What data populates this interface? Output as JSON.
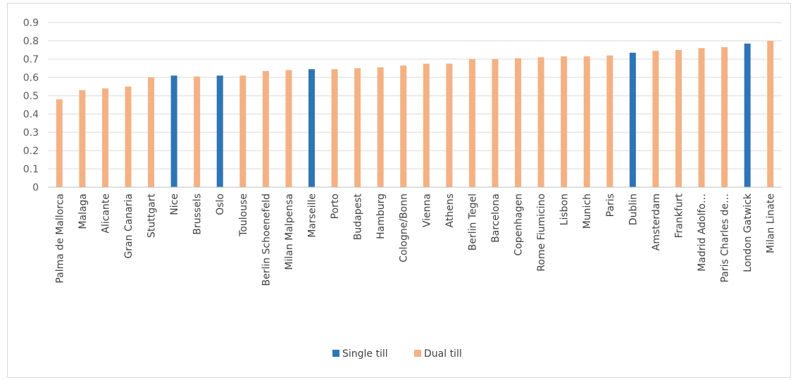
{
  "colors": {
    "single_till": "#2e75b6",
    "dual_till": "#f4b183",
    "grid": "#d9d9d9",
    "axis": "#bfbfbf"
  },
  "chart_data": {
    "type": "bar",
    "title": "",
    "xlabel": "",
    "ylabel": "",
    "ylim": [
      0,
      0.9
    ],
    "yticks": [
      "0",
      "0.1",
      "0.2",
      "0.3",
      "0.4",
      "0.5",
      "0.6",
      "0.7",
      "0.8",
      "0.9"
    ],
    "grid": true,
    "legend_position": "bottom",
    "categories": [
      "Palma de Mallorca",
      "Malaga",
      "Alicante",
      "Gran Canaria",
      "Stuttgart",
      "Nice",
      "Brussels",
      "Oslo",
      "Toulouse",
      "Berlin Schoenefeld",
      "Milan Malpensa",
      "Marseille",
      "Porto",
      "Budapest",
      "Hamburg",
      "Cologne/Bonn",
      "Vienna",
      "Athens",
      "Berlin Tegel",
      "Barcelona",
      "Copenhagen",
      "Rome Fiumicino",
      "Lisbon",
      "Munich",
      "Paris",
      "Dublin",
      "Amsterdam",
      "Frankfurt",
      "Madrid Adolfo…",
      "Paris Charles de…",
      "London Gatwick",
      "Milan Linate"
    ],
    "series": [
      {
        "name": "Single till",
        "color": "#2e75b6",
        "values": [
          null,
          null,
          null,
          null,
          null,
          0.61,
          null,
          0.61,
          null,
          null,
          null,
          0.645,
          null,
          null,
          null,
          null,
          null,
          null,
          null,
          null,
          null,
          null,
          null,
          null,
          null,
          0.735,
          null,
          null,
          null,
          null,
          0.785,
          null
        ]
      },
      {
        "name": "Dual till",
        "color": "#f4b183",
        "values": [
          0.48,
          0.53,
          0.54,
          0.55,
          0.6,
          null,
          0.605,
          null,
          0.61,
          0.635,
          0.64,
          null,
          0.645,
          0.65,
          0.655,
          0.665,
          0.675,
          0.675,
          0.7,
          0.7,
          0.705,
          0.71,
          0.715,
          0.715,
          0.72,
          null,
          0.745,
          0.75,
          0.76,
          0.765,
          null,
          0.8
        ]
      }
    ]
  }
}
